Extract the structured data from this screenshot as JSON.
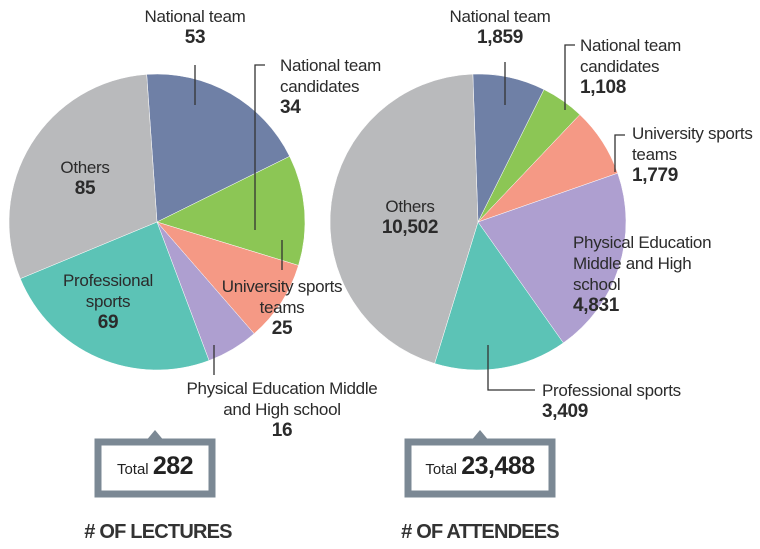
{
  "chart_data": [
    {
      "type": "pie",
      "title": "# OF LECTURES",
      "total_text": "Total",
      "total": 282,
      "categories": [
        "National team",
        "National team candidates",
        "University sports teams",
        "Physical Education Middle and High school",
        "Professional sports",
        "Others"
      ],
      "values": [
        53,
        34,
        25,
        16,
        69,
        85
      ],
      "colors": [
        "#6f80a6",
        "#8cc655",
        "#f59985",
        "#ae9fd0",
        "#5cc3b6",
        "#b9babc"
      ]
    },
    {
      "type": "pie",
      "title": "# OF ATTENDEES",
      "total_text": "Total",
      "total": {
        "value": 23488,
        "label": "23,488"
      },
      "categories": [
        "National team",
        "National team candidates",
        "University sports teams",
        "Physical Education Middle and High school",
        "Professional sports",
        "Others"
      ],
      "values": [
        1859,
        1108,
        1779,
        4831,
        3409,
        10502
      ],
      "value_labels": [
        "1,859",
        "1,108",
        "1,779",
        "4,831",
        "3,409",
        "10,502"
      ],
      "colors": [
        "#6f80a6",
        "#8cc655",
        "#f59985",
        "#ae9fd0",
        "#5cc3b6",
        "#b9babc"
      ]
    }
  ]
}
